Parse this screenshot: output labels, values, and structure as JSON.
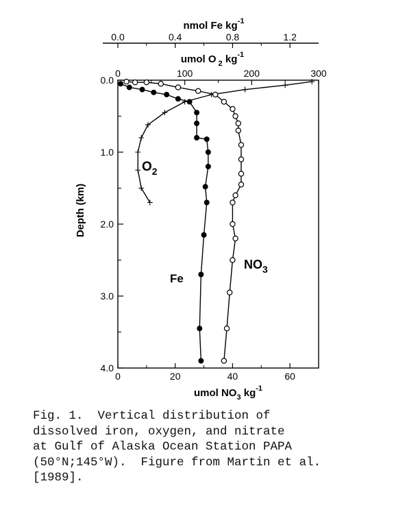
{
  "chart_data": {
    "type": "line",
    "y_axis": {
      "label": "Depth (km)",
      "range": [
        0.0,
        4.0
      ],
      "inverted": true,
      "ticks": [
        "0.0",
        "1.0",
        "2.0",
        "3.0",
        "4.0"
      ]
    },
    "x_axes": {
      "fe": {
        "label": "nmol Fe kg",
        "exp": "-1",
        "position": "top",
        "range": [
          0.0,
          1.4
        ],
        "ticks": [
          {
            "v": 0.0,
            "t": "0.0"
          },
          {
            "v": 0.4,
            "t": "0.4"
          },
          {
            "v": 0.8,
            "t": "0.8"
          },
          {
            "v": 1.2,
            "t": "1.2"
          }
        ]
      },
      "o2": {
        "label": "umol O",
        "sub": "2",
        "tail": " kg",
        "exp": "-1",
        "position": "top",
        "range": [
          0,
          300
        ],
        "ticks": [
          {
            "v": 0,
            "t": "0"
          },
          {
            "v": 100,
            "t": "100"
          },
          {
            "v": 200,
            "t": "200"
          },
          {
            "v": 300,
            "t": "300"
          }
        ]
      },
      "no3": {
        "label": "umol NO",
        "sub": "3",
        "tail": " kg",
        "exp": "-1",
        "position": "bottom",
        "range": [
          0,
          70
        ],
        "ticks": [
          {
            "v": 0,
            "t": "0"
          },
          {
            "v": 20,
            "t": "20"
          },
          {
            "v": 40,
            "t": "40"
          },
          {
            "v": 60,
            "t": "60"
          }
        ]
      }
    },
    "series": [
      {
        "name": "Fe",
        "axis": "fe",
        "marker": "filled-circle",
        "points": [
          [
            0.02,
            0.05
          ],
          [
            0.08,
            0.1
          ],
          [
            0.17,
            0.13
          ],
          [
            0.25,
            0.17
          ],
          [
            0.34,
            0.2
          ],
          [
            0.42,
            0.26
          ],
          [
            0.5,
            0.3
          ],
          [
            0.55,
            0.45
          ],
          [
            0.55,
            0.6
          ],
          [
            0.55,
            0.8
          ],
          [
            0.62,
            0.82
          ],
          [
            0.63,
            1.0
          ],
          [
            0.63,
            1.2
          ],
          [
            0.61,
            1.48
          ],
          [
            0.62,
            1.7
          ],
          [
            0.6,
            2.15
          ],
          [
            0.58,
            2.7
          ],
          [
            0.57,
            3.45
          ],
          [
            0.58,
            3.9
          ]
        ]
      },
      {
        "name": "O2",
        "axis": "o2",
        "marker": "cross",
        "points": [
          [
            290,
            0.02
          ],
          [
            250,
            0.07
          ],
          [
            190,
            0.13
          ],
          [
            140,
            0.2
          ],
          [
            100,
            0.3
          ],
          [
            70,
            0.45
          ],
          [
            45,
            0.62
          ],
          [
            35,
            0.8
          ],
          [
            30,
            1.0
          ],
          [
            30,
            1.25
          ],
          [
            35,
            1.5
          ],
          [
            48,
            1.7
          ]
        ]
      },
      {
        "name": "NO3",
        "axis": "no3",
        "marker": "open-circle",
        "points": [
          [
            3,
            0.02
          ],
          [
            6,
            0.03
          ],
          [
            10,
            0.03
          ],
          [
            15,
            0.05
          ],
          [
            21,
            0.1
          ],
          [
            28,
            0.15
          ],
          [
            34,
            0.2
          ],
          [
            37,
            0.3
          ],
          [
            40,
            0.4
          ],
          [
            41,
            0.5
          ],
          [
            42,
            0.6
          ],
          [
            42,
            0.7
          ],
          [
            43,
            0.9
          ],
          [
            43,
            1.1
          ],
          [
            43,
            1.3
          ],
          [
            43,
            1.45
          ],
          [
            41,
            1.6
          ],
          [
            40,
            1.7
          ],
          [
            40,
            2.0
          ],
          [
            41,
            2.2
          ],
          [
            40,
            2.5
          ],
          [
            39,
            2.95
          ],
          [
            38,
            3.45
          ],
          [
            37,
            3.9
          ]
        ]
      }
    ]
  },
  "labels": {
    "fe": "Fe",
    "o2_main": "O",
    "o2_sub": "2",
    "no3_main": "NO",
    "no3_sub": "3"
  },
  "caption": [
    "Fig. 1.  Vertical distribution of",
    "dissolved iron, oxygen, and nitrate",
    "at Gulf of Alaska Ocean Station PAPA",
    "(50°N;145°W).  Figure from Martin et al.",
    "[1989]."
  ]
}
